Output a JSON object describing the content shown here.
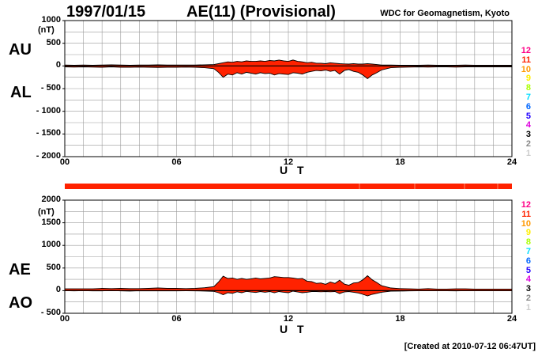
{
  "header": {
    "date": "1997/01/15",
    "title": "AE(11) (Provisional)",
    "source": "WDC for Geomagnetism, Kyoto",
    "created": "[Created at 2010-07-12 06:47UT]"
  },
  "colors": {
    "fill": "#ff2200",
    "grid": "#999999",
    "line": "#000000",
    "station_keys": [
      "#ff0088",
      "#ff2200",
      "#ff9900",
      "#ffee00",
      "#aaff00",
      "#00ddff",
      "#0066ff",
      "#2200ff",
      "#dd00dd",
      "#000000",
      "#888888",
      "#cccccc"
    ]
  },
  "station_keys": [
    "12",
    "11",
    "10",
    "9",
    "8",
    "7",
    "6",
    "5",
    "4",
    "3",
    "2",
    "1"
  ],
  "chart_data": [
    {
      "type": "area",
      "name": "AU/AL",
      "labels": {
        "upper": "AU",
        "lower": "AL"
      },
      "unit": "(nT)",
      "xlabel": "U T",
      "xlim": [
        0,
        24
      ],
      "xticks": [
        "00",
        "06",
        "12",
        "18",
        "24"
      ],
      "ylim": [
        -2000,
        1000
      ],
      "yticks": [
        "1000",
        "500",
        "0",
        "- 500",
        "- 1000",
        "- 1500",
        "- 2000"
      ],
      "ytick_values": [
        1000,
        500,
        0,
        -500,
        -1000,
        -1500,
        -2000
      ],
      "x": [
        0,
        0.5,
        1,
        1.5,
        2,
        2.5,
        3,
        3.5,
        4,
        4.5,
        5,
        5.5,
        6,
        6.5,
        7,
        7.5,
        8,
        8.25,
        8.5,
        8.75,
        9,
        9.25,
        9.5,
        9.75,
        10,
        10.25,
        10.5,
        10.75,
        11,
        11.25,
        11.5,
        11.75,
        12,
        12.25,
        12.5,
        12.75,
        13,
        13.25,
        13.5,
        13.75,
        14,
        14.25,
        14.5,
        14.75,
        15,
        15.25,
        15.5,
        15.75,
        16,
        16.25,
        16.5,
        16.75,
        17,
        17.5,
        18,
        18.5,
        19,
        19.5,
        20,
        20.5,
        21,
        21.5,
        22,
        22.5,
        23,
        23.5,
        24
      ],
      "series": [
        {
          "key": "AU",
          "values": [
            20,
            15,
            20,
            15,
            20,
            25,
            20,
            15,
            20,
            20,
            25,
            20,
            20,
            20,
            20,
            25,
            30,
            50,
            70,
            90,
            80,
            100,
            90,
            110,
            100,
            100,
            110,
            100,
            120,
            110,
            130,
            110,
            100,
            130,
            100,
            90,
            70,
            80,
            60,
            60,
            50,
            70,
            60,
            50,
            45,
            40,
            50,
            40,
            40,
            50,
            40,
            30,
            20,
            20,
            15,
            15,
            15,
            20,
            15,
            15,
            15,
            20,
            15,
            15,
            15,
            15,
            15
          ]
        },
        {
          "key": "AL",
          "values": [
            -20,
            -25,
            -20,
            -25,
            -30,
            -20,
            -30,
            -30,
            -25,
            -30,
            -35,
            -30,
            -30,
            -25,
            -30,
            -40,
            -60,
            -140,
            -250,
            -180,
            -200,
            -150,
            -180,
            -140,
            -160,
            -180,
            -150,
            -170,
            -160,
            -200,
            -170,
            -180,
            -190,
            -150,
            -160,
            -180,
            -140,
            -120,
            -100,
            -110,
            -90,
            -120,
            -100,
            -180,
            -100,
            -80,
            -120,
            -140,
            -200,
            -280,
            -200,
            -150,
            -90,
            -40,
            -30,
            -25,
            -20,
            -25,
            -20,
            -20,
            -25,
            -20,
            -20,
            -20,
            -20,
            -20,
            -20
          ]
        }
      ]
    },
    {
      "type": "area",
      "name": "AE/AO",
      "labels": {
        "upper": "AE",
        "lower": "AO"
      },
      "unit": "(nT)",
      "xlabel": "U T",
      "xlim": [
        0,
        24
      ],
      "xticks": [
        "00",
        "06",
        "12",
        "18",
        "24"
      ],
      "ylim": [
        -500,
        2000
      ],
      "yticks": [
        "2000",
        "1500",
        "1000",
        "500",
        "0",
        "- 500"
      ],
      "ytick_values": [
        2000,
        1500,
        1000,
        500,
        0,
        -500
      ],
      "x": [
        0,
        0.5,
        1,
        1.5,
        2,
        2.5,
        3,
        3.5,
        4,
        4.5,
        5,
        5.5,
        6,
        6.5,
        7,
        7.5,
        8,
        8.25,
        8.5,
        8.75,
        9,
        9.25,
        9.5,
        9.75,
        10,
        10.25,
        10.5,
        10.75,
        11,
        11.25,
        11.5,
        11.75,
        12,
        12.25,
        12.5,
        12.75,
        13,
        13.25,
        13.5,
        13.75,
        14,
        14.25,
        14.5,
        14.75,
        15,
        15.25,
        15.5,
        15.75,
        16,
        16.25,
        16.5,
        16.75,
        17,
        17.5,
        18,
        18.5,
        19,
        19.5,
        20,
        20.5,
        21,
        21.5,
        22,
        22.5,
        23,
        23.5,
        24
      ],
      "series": [
        {
          "key": "AE",
          "values": [
            40,
            40,
            40,
            40,
            50,
            45,
            50,
            45,
            45,
            50,
            60,
            50,
            50,
            45,
            50,
            65,
            90,
            190,
            320,
            270,
            280,
            250,
            270,
            250,
            260,
            280,
            260,
            270,
            280,
            310,
            300,
            290,
            290,
            280,
            260,
            270,
            210,
            200,
            160,
            170,
            140,
            190,
            160,
            230,
            145,
            120,
            170,
            180,
            240,
            330,
            240,
            180,
            110,
            60,
            45,
            40,
            35,
            45,
            35,
            35,
            40,
            40,
            35,
            35,
            35,
            35,
            35
          ]
        },
        {
          "key": "AO",
          "values": [
            0,
            -5,
            0,
            -5,
            -5,
            3,
            -5,
            -8,
            -3,
            -5,
            -5,
            -5,
            -5,
            -3,
            -5,
            -8,
            -15,
            -45,
            -90,
            -45,
            -60,
            -25,
            -45,
            -15,
            -30,
            -40,
            -20,
            -35,
            -20,
            -45,
            -20,
            -35,
            -45,
            -10,
            -30,
            -45,
            -35,
            -20,
            -20,
            -25,
            -20,
            -25,
            -20,
            -65,
            -28,
            -20,
            -35,
            -50,
            -80,
            -115,
            -80,
            -60,
            -35,
            -10,
            -8,
            -5,
            -3,
            -3,
            -3,
            -3,
            -5,
            0,
            -3,
            -3,
            -3,
            -3,
            -3
          ]
        }
      ]
    }
  ]
}
